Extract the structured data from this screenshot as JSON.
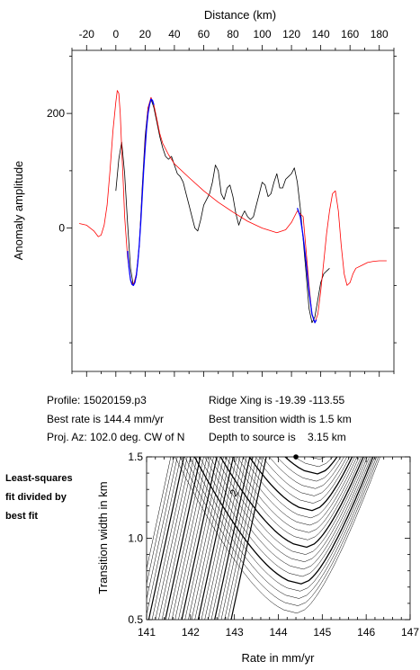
{
  "info": {
    "profile": "Profile: 15020159.p3",
    "best_rate": "Best rate is 144.4 mm/yr",
    "proj_az": "Proj. Az: 102.0 deg. CW of N",
    "ridge_xing": "Ridge Xing is -19.39 -113.55",
    "best_width": "Best transition width is 1.5 km",
    "depth": "Depth to source is    3.15 km",
    "side_note": [
      "Least-squares",
      "fit divided by",
      "best fit"
    ]
  },
  "chart_data": [
    {
      "type": "line",
      "xlabel": "Distance (km)",
      "ylabel": "Anomaly amplitude",
      "xlim": [
        -30,
        190
      ],
      "ylim": [
        -250,
        310
      ],
      "x_ticks": [
        -20,
        0,
        20,
        40,
        60,
        80,
        100,
        120,
        140,
        160,
        180
      ],
      "y_ticks": [
        0,
        200
      ],
      "grid": false,
      "series": [
        {
          "color": "#000000",
          "x": [
            0,
            2,
            4,
            6,
            8,
            10,
            12,
            14,
            16,
            18,
            20,
            22,
            24,
            26,
            28,
            30,
            32,
            34,
            36,
            38,
            40,
            42,
            44,
            46,
            48,
            50,
            52,
            54,
            56,
            58,
            60,
            62,
            64,
            66,
            68,
            70,
            72,
            74,
            76,
            78,
            80,
            82,
            84,
            86,
            88,
            90,
            92,
            94,
            96,
            98,
            100,
            102,
            104,
            106,
            108,
            110,
            112,
            114,
            116,
            118,
            120,
            122,
            124,
            126,
            128,
            130,
            132,
            134,
            136,
            138,
            140,
            142,
            144,
            146
          ],
          "y": [
            65,
            120,
            150,
            95,
            10,
            -70,
            -100,
            -85,
            -30,
            70,
            160,
            210,
            225,
            210,
            185,
            160,
            140,
            125,
            120,
            125,
            110,
            95,
            90,
            80,
            60,
            40,
            20,
            0,
            -5,
            15,
            40,
            50,
            60,
            80,
            110,
            100,
            60,
            50,
            70,
            75,
            55,
            25,
            5,
            20,
            30,
            20,
            15,
            20,
            40,
            60,
            80,
            75,
            55,
            60,
            80,
            95,
            70,
            70,
            85,
            90,
            95,
            105,
            80,
            35,
            -20,
            -80,
            -140,
            -165,
            -155,
            -125,
            -95,
            -80,
            -75,
            -70
          ]
        },
        {
          "color": "#ff0000",
          "x": [
            -25,
            -20,
            -15,
            -12,
            -10,
            -8,
            -6,
            -4,
            -2,
            0,
            1,
            2,
            3,
            4,
            5,
            6,
            8,
            10,
            12,
            14,
            16,
            18,
            20,
            22,
            24,
            26,
            28,
            30,
            32,
            36,
            40,
            50,
            60,
            70,
            80,
            90,
            100,
            110,
            116,
            120,
            124,
            128,
            130,
            132,
            134,
            136,
            138,
            140,
            142,
            144,
            146,
            148,
            150,
            152,
            154,
            156,
            158,
            160,
            162,
            164,
            168,
            172,
            176,
            180,
            185
          ],
          "y": [
            8,
            5,
            -5,
            -15,
            -12,
            5,
            40,
            100,
            170,
            220,
            240,
            235,
            200,
            140,
            80,
            20,
            -50,
            -90,
            -100,
            -80,
            -30,
            60,
            150,
            210,
            228,
            215,
            190,
            165,
            148,
            128,
            112,
            88,
            65,
            45,
            28,
            12,
            0,
            -8,
            -3,
            10,
            30,
            20,
            -40,
            -100,
            -150,
            -165,
            -150,
            -110,
            -60,
            -10,
            30,
            60,
            65,
            30,
            -30,
            -80,
            -100,
            -95,
            -80,
            -70,
            -65,
            -60,
            -58,
            -57,
            -57
          ]
        },
        {
          "color": "#0000ff",
          "x": [
            8,
            9,
            10,
            11,
            12,
            13,
            14,
            15,
            16,
            17,
            18,
            19,
            20,
            21,
            22,
            23,
            24,
            25,
            26
          ],
          "y": [
            -40,
            -70,
            -90,
            -98,
            -100,
            -95,
            -82,
            -60,
            -28,
            10,
            55,
            100,
            140,
            175,
            200,
            215,
            225,
            223,
            215
          ]
        },
        {
          "color": "#0000ff",
          "x": [
            124,
            126,
            128,
            130,
            132,
            134,
            136,
            137
          ],
          "y": [
            35,
            20,
            -15,
            -60,
            -110,
            -150,
            -165,
            -160
          ]
        }
      ]
    },
    {
      "type": "contour",
      "xlabel": "Rate in mm/yr",
      "ylabel": "Transition width in km",
      "xlim": [
        141,
        147
      ],
      "ylim": [
        0.5,
        1.5
      ],
      "x_ticks": [
        141,
        142,
        143,
        144,
        145,
        146,
        147
      ],
      "y_ticks": [
        0.5,
        1.0,
        1.5
      ],
      "grid": false,
      "best_fit": {
        "x": 144.4,
        "y": 1.5
      },
      "annotations": [
        "2"
      ]
    }
  ]
}
